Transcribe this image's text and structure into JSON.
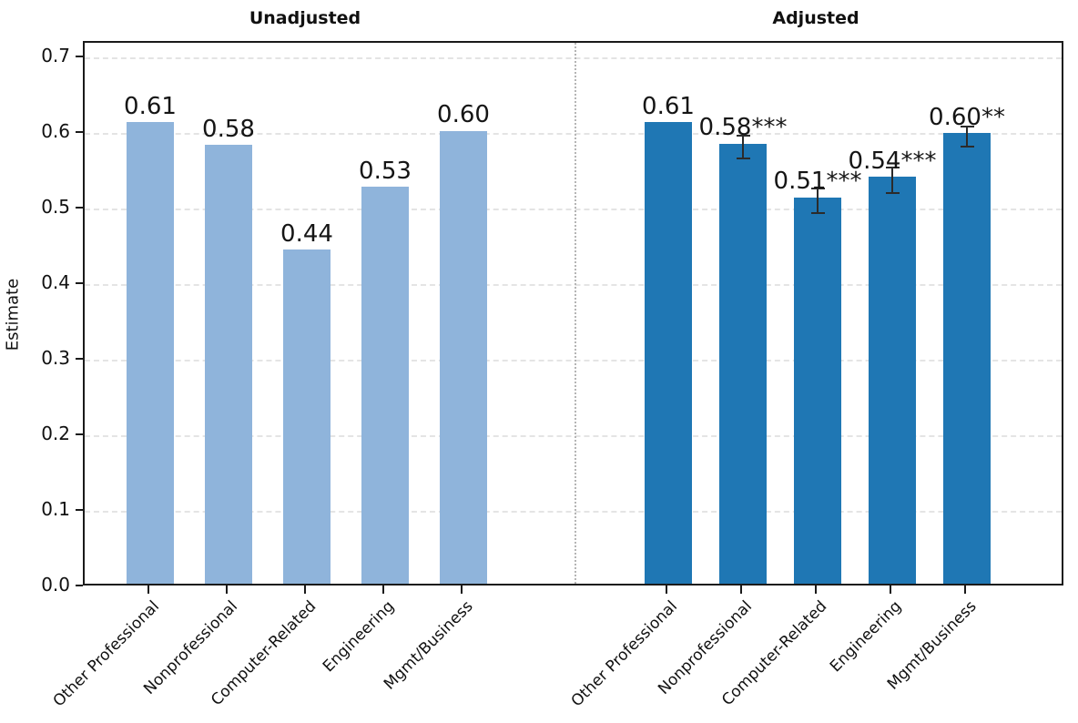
{
  "chart_data": {
    "type": "bar",
    "ylabel": "Estimate",
    "ylim": [
      0,
      0.72
    ],
    "yticks": [
      0.0,
      0.1,
      0.2,
      0.3,
      0.4,
      0.5,
      0.6,
      0.7
    ],
    "ytick_labels": [
      "0.0",
      "0.1",
      "0.2",
      "0.3",
      "0.4",
      "0.5",
      "0.6",
      "0.7"
    ],
    "grid": "horizontal-dashed",
    "legend": "none",
    "panel_separator": "dotted-vertical-line",
    "categories": [
      "Other Professional",
      "Nonprofessional",
      "Computer-Related",
      "Engineering",
      "Mgmt/Business"
    ],
    "series": [
      {
        "name": "Unadjusted",
        "color": "#8fb4db",
        "values": [
          0.61,
          0.58,
          0.442,
          0.525,
          0.599
        ],
        "labels": [
          "0.61",
          "0.58",
          "0.44",
          "0.53",
          "0.60"
        ],
        "errors": [
          null,
          null,
          null,
          null,
          null
        ]
      },
      {
        "name": "Adjusted",
        "color": "#1f77b4",
        "values": [
          0.61,
          0.582,
          0.511,
          0.538,
          0.596
        ],
        "labels": [
          "0.61",
          "0.58***",
          "0.51***",
          "0.54***",
          "0.60**"
        ],
        "errors": [
          null,
          0.015,
          0.016,
          0.017,
          0.013
        ]
      }
    ],
    "colors": {
      "unadjusted_bar": "#8fb4db",
      "adjusted_bar": "#1f77b4",
      "error_bar": "#2b2b2b",
      "gridline": "#e4e4e4",
      "separator": "#b5b5b5",
      "spine": "#1a1a1a",
      "text": "#111111"
    }
  }
}
